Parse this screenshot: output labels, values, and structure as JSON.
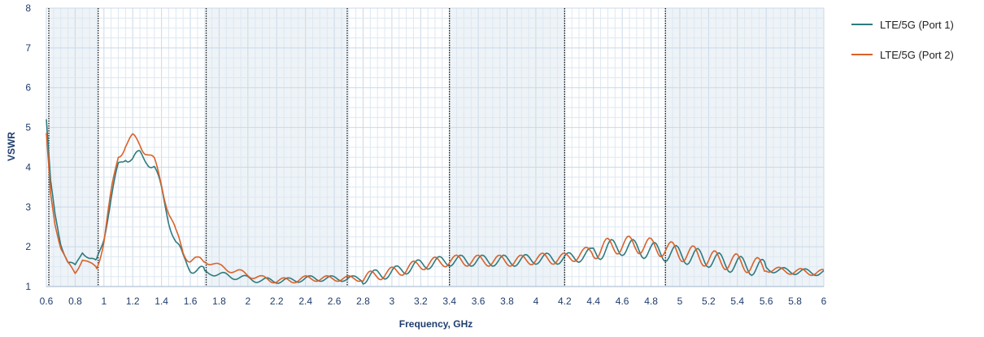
{
  "chart_data": {
    "type": "line",
    "title": "",
    "xlabel": "Frequency, GHz",
    "ylabel": "VSWR",
    "xlim": [
      0.6,
      6.0
    ],
    "ylim": [
      1,
      8
    ],
    "xticks": [
      "0.6",
      "0.8",
      "1",
      "1.2",
      "1.4",
      "1.6",
      "1.8",
      "2",
      "2.2",
      "2.4",
      "2.6",
      "2.8",
      "3",
      "3.2",
      "3.4",
      "3.6",
      "3.8",
      "4",
      "4.2",
      "4.4",
      "4.6",
      "4.8",
      "5",
      "5.2",
      "5.4",
      "5.6",
      "5.8",
      "6"
    ],
    "yticks": [
      "1",
      "2",
      "3",
      "4",
      "5",
      "6",
      "7",
      "8"
    ],
    "grid": true,
    "legend_position": "top-right",
    "band_edges_ghz": [
      0.617,
      0.96,
      1.71,
      2.69,
      3.4,
      4.2,
      4.9
    ],
    "shaded_bands_ghz": [
      [
        0.617,
        0.96
      ],
      [
        1.71,
        2.69
      ],
      [
        3.4,
        4.2
      ],
      [
        4.9,
        6.0
      ]
    ],
    "series": [
      {
        "name": "LTE/5G (Port 1)",
        "color": "#2e7b7e",
        "x": [
          0.6,
          0.63,
          0.66,
          0.7,
          0.75,
          0.8,
          0.85,
          0.9,
          0.95,
          1.0,
          1.05,
          1.1,
          1.15,
          1.2,
          1.25,
          1.3,
          1.35,
          1.4,
          1.45,
          1.5,
          1.55,
          1.6,
          1.65,
          1.7,
          1.75,
          1.8,
          1.9,
          2.0,
          2.1,
          2.2,
          2.3,
          2.4,
          2.5,
          2.6,
          2.7,
          2.8,
          2.9,
          3.0,
          3.1,
          3.2,
          3.3,
          3.4,
          3.5,
          3.6,
          3.7,
          3.8,
          3.9,
          4.0,
          4.1,
          4.2,
          4.3,
          4.4,
          4.5,
          4.6,
          4.7,
          4.8,
          4.9,
          5.0,
          5.1,
          5.2,
          5.3,
          5.4,
          5.5,
          5.6,
          5.7,
          5.8,
          5.9,
          6.0
        ],
        "values": [
          5.2,
          3.6,
          2.8,
          2.1,
          1.6,
          1.5,
          1.9,
          1.7,
          1.6,
          2.3,
          3.2,
          4.0,
          4.3,
          4.2,
          4.3,
          4.2,
          4.0,
          3.4,
          2.7,
          2.1,
          1.7,
          1.5,
          1.4,
          1.35,
          1.35,
          1.3,
          1.25,
          1.2,
          1.15,
          1.15,
          1.15,
          1.2,
          1.2,
          1.2,
          1.2,
          1.2,
          1.3,
          1.35,
          1.45,
          1.55,
          1.6,
          1.65,
          1.65,
          1.65,
          1.65,
          1.65,
          1.65,
          1.7,
          1.7,
          1.7,
          1.75,
          1.85,
          1.95,
          2.0,
          1.95,
          1.9,
          1.85,
          1.8,
          1.75,
          1.7,
          1.6,
          1.55,
          1.5,
          1.45,
          1.4,
          1.38,
          1.36,
          1.35
        ]
      },
      {
        "name": "LTE/5G (Port 2)",
        "color": "#d9622b",
        "x": [
          0.6,
          0.63,
          0.66,
          0.7,
          0.75,
          0.8,
          0.85,
          0.9,
          0.95,
          1.0,
          1.05,
          1.1,
          1.15,
          1.2,
          1.25,
          1.3,
          1.35,
          1.4,
          1.45,
          1.5,
          1.55,
          1.6,
          1.65,
          1.7,
          1.75,
          1.8,
          1.9,
          2.0,
          2.1,
          2.2,
          2.3,
          2.4,
          2.5,
          2.6,
          2.7,
          2.8,
          2.9,
          3.0,
          3.1,
          3.2,
          3.3,
          3.4,
          3.5,
          3.6,
          3.7,
          3.8,
          3.9,
          4.0,
          4.1,
          4.2,
          4.3,
          4.4,
          4.5,
          4.6,
          4.7,
          4.8,
          4.9,
          5.0,
          5.1,
          5.2,
          5.3,
          5.4,
          5.5,
          5.6,
          5.7,
          5.8,
          5.9,
          6.0
        ],
        "values": [
          4.8,
          3.3,
          2.6,
          2.0,
          1.55,
          1.35,
          1.7,
          1.55,
          1.5,
          2.2,
          3.3,
          4.3,
          4.6,
          4.7,
          4.6,
          4.4,
          4.1,
          3.6,
          2.9,
          2.3,
          1.9,
          1.7,
          1.6,
          1.65,
          1.6,
          1.5,
          1.4,
          1.3,
          1.2,
          1.15,
          1.15,
          1.2,
          1.2,
          1.2,
          1.2,
          1.2,
          1.3,
          1.35,
          1.45,
          1.55,
          1.6,
          1.65,
          1.65,
          1.65,
          1.65,
          1.65,
          1.65,
          1.7,
          1.7,
          1.7,
          1.8,
          1.9,
          2.0,
          2.05,
          2.05,
          2.0,
          1.95,
          1.85,
          1.8,
          1.7,
          1.65,
          1.6,
          1.55,
          1.45,
          1.4,
          1.38,
          1.36,
          1.35
        ]
      }
    ]
  }
}
